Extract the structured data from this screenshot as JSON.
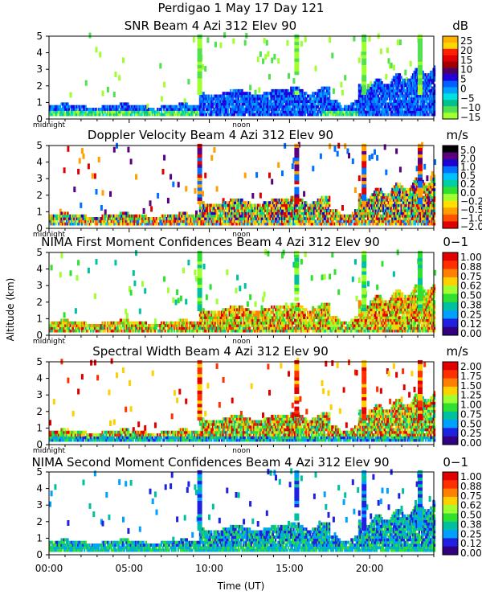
{
  "page_title": "Perdigao    1 May 17 Day 121",
  "y_axis_label": "Altitude (km)",
  "x_axis_label": "Time (UT)",
  "x_ticks": [
    "00:00",
    "05:00",
    "10:00",
    "15:00",
    "20:00"
  ],
  "midnight_label": "midnight",
  "noon_label": "noon",
  "chart_data": [
    {
      "type": "heatmap",
      "title": "SNR Beam 4 Azi 312 Elev 90",
      "unit": "dB",
      "colorbar_labels": [
        "25",
        "20",
        "15",
        "10",
        "5",
        "0",
        "−5",
        "−10",
        "−15"
      ],
      "colorbar_colors": [
        "#ffb000",
        "#ffd700",
        "#ff2000",
        "#e00000",
        "#a00000",
        "#4b006e",
        "#2000e0",
        "#0060ff",
        "#00a0ff",
        "#00e0e0",
        "#00c090",
        "#50e050",
        "#a0ff30"
      ],
      "ylim": [
        0,
        5
      ],
      "yticks": [
        "0",
        "1",
        "2",
        "3",
        "4",
        "5"
      ],
      "xlim": [
        0,
        24
      ],
      "scale": "snr"
    },
    {
      "type": "heatmap",
      "title": "Doppler Velocity Beam 4 Azi 312 Elev 90",
      "unit": "m/s",
      "colorbar_labels": [
        "5.0",
        "2.0",
        "1.0",
        "0.5",
        "0.2",
        "0.0",
        "−0.2",
        "−0.5",
        "−1.0",
        "−2.0"
      ],
      "colorbar_colors": [
        "#000000",
        "#5a0080",
        "#2000d0",
        "#0070ff",
        "#00c0ff",
        "#00d0a0",
        "#30e030",
        "#a0ff30",
        "#ffe000",
        "#ffa000",
        "#ff5000",
        "#e00000"
      ],
      "ylim": [
        0,
        5
      ],
      "yticks": [
        "0",
        "1",
        "2",
        "3",
        "4",
        "5"
      ],
      "xlim": [
        0,
        24
      ],
      "scale": "vel"
    },
    {
      "type": "heatmap",
      "title": "NIMA First Moment Confidences Beam 4 Azi 312 Elev 90",
      "unit": "0−1",
      "colorbar_labels": [
        "1.00",
        "0.88",
        "0.75",
        "0.62",
        "0.50",
        "0.38",
        "0.25",
        "0.12",
        "0.00"
      ],
      "colorbar_colors": [
        "#e00000",
        "#ff3000",
        "#ff8000",
        "#ffd000",
        "#a0ff30",
        "#30e030",
        "#00c0a0",
        "#00a0ff",
        "#2020e0",
        "#300080"
      ],
      "ylim": [
        0,
        5
      ],
      "yticks": [
        "0",
        "1",
        "2",
        "3",
        "4",
        "5"
      ],
      "xlim": [
        0,
        24
      ],
      "scale": "conf1"
    },
    {
      "type": "heatmap",
      "title": "Spectral Width Beam 4 Azi 312 Elev 90",
      "unit": "m/s",
      "colorbar_labels": [
        "2.00",
        "1.75",
        "1.50",
        "1.25",
        "1.00",
        "0.75",
        "0.50",
        "0.25",
        "0.00"
      ],
      "colorbar_colors": [
        "#e00000",
        "#ff3000",
        "#ff8000",
        "#ffd000",
        "#a0ff30",
        "#30e030",
        "#00c0a0",
        "#00a0ff",
        "#2020e0",
        "#300080"
      ],
      "ylim": [
        0,
        5
      ],
      "yticks": [
        "0",
        "1",
        "2",
        "3",
        "4",
        "5"
      ],
      "xlim": [
        0,
        24
      ],
      "scale": "sw"
    },
    {
      "type": "heatmap",
      "title": "NIMA Second Moment Confidences Beam 4 Azi 312 Elev 90",
      "unit": "0−1",
      "colorbar_labels": [
        "1.00",
        "0.88",
        "0.75",
        "0.62",
        "0.50",
        "0.38",
        "0.25",
        "0.12",
        "0.00"
      ],
      "colorbar_colors": [
        "#e00000",
        "#ff3000",
        "#ff8000",
        "#ffd000",
        "#a0ff30",
        "#30e030",
        "#00c0a0",
        "#00a0ff",
        "#2020e0",
        "#300080"
      ],
      "ylim": [
        0,
        5
      ],
      "yticks": [
        "0",
        "1",
        "2",
        "3",
        "4",
        "5"
      ],
      "xlim": [
        0,
        24
      ],
      "scale": "conf2"
    }
  ]
}
